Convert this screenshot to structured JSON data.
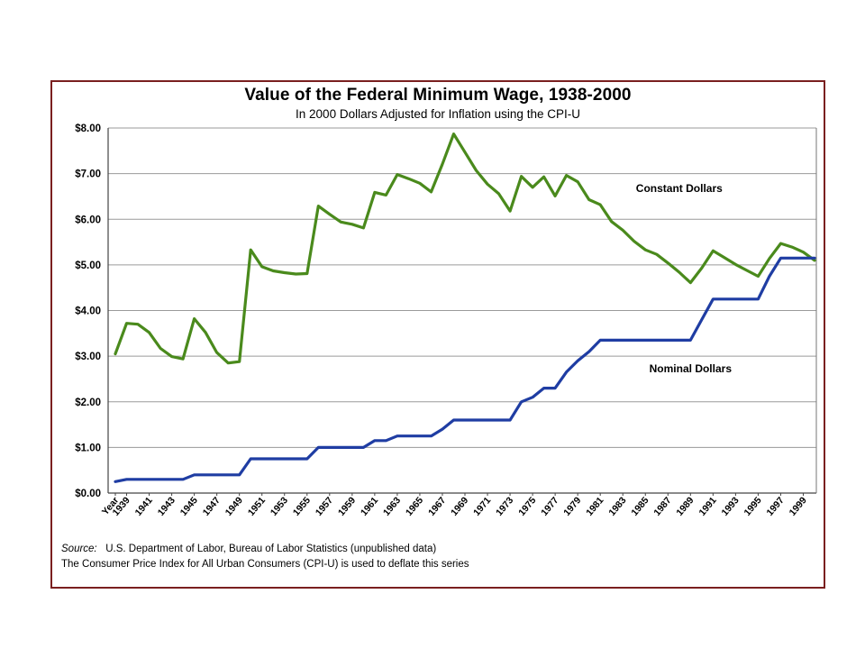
{
  "chart_data": {
    "type": "line",
    "title": "Value of the Federal Minimum Wage, 1938-2000",
    "subtitle": "In 2000 Dollars Adjusted for Inflation using the CPI-U",
    "xlabel": "Year",
    "ylabel": "",
    "ylim": [
      0,
      8
    ],
    "yticks": [
      "$0.00",
      "$1.00",
      "$2.00",
      "$3.00",
      "$4.00",
      "$5.00",
      "$6.00",
      "$7.00",
      "$8.00"
    ],
    "xticks": [
      "Year",
      "1939",
      "1941",
      "1943",
      "1945",
      "1947",
      "1949",
      "1951",
      "1953",
      "1955",
      "1957",
      "1959",
      "1961",
      "1963",
      "1965",
      "1967",
      "1969",
      "1971",
      "1973",
      "1975",
      "1977",
      "1979",
      "1981",
      "1983",
      "1985",
      "1987",
      "1989",
      "1991",
      "1993",
      "1995",
      "1997",
      "1999"
    ],
    "x": [
      1938,
      1939,
      1940,
      1941,
      1942,
      1943,
      1944,
      1945,
      1946,
      1947,
      1948,
      1949,
      1950,
      1951,
      1952,
      1953,
      1954,
      1955,
      1956,
      1957,
      1958,
      1959,
      1960,
      1961,
      1962,
      1963,
      1964,
      1965,
      1966,
      1967,
      1968,
      1969,
      1970,
      1971,
      1972,
      1973,
      1974,
      1975,
      1976,
      1977,
      1978,
      1979,
      1980,
      1981,
      1982,
      1983,
      1984,
      1985,
      1986,
      1987,
      1988,
      1989,
      1990,
      1991,
      1992,
      1993,
      1994,
      1995,
      1996,
      1997,
      1998,
      1999,
      2000
    ],
    "grid": true,
    "series": [
      {
        "name": "Constant Dollars",
        "color": "#4a8a1c",
        "values": [
          3.05,
          3.72,
          3.7,
          3.52,
          3.17,
          2.99,
          2.94,
          3.82,
          3.52,
          3.08,
          2.85,
          2.88,
          5.33,
          4.96,
          4.87,
          4.83,
          4.8,
          4.81,
          6.29,
          6.11,
          5.94,
          5.89,
          5.81,
          6.59,
          6.53,
          6.98,
          6.89,
          6.79,
          6.6,
          7.21,
          7.87,
          7.47,
          7.07,
          6.77,
          6.56,
          6.18,
          6.94,
          6.7,
          6.93,
          6.51,
          6.96,
          6.82,
          6.43,
          6.32,
          5.95,
          5.76,
          5.52,
          5.33,
          5.23,
          5.04,
          4.84,
          4.61,
          4.93,
          5.31,
          5.16,
          5.01,
          4.88,
          4.75,
          5.14,
          5.47,
          5.39,
          5.28,
          5.1
        ]
      },
      {
        "name": "Nominal Dollars",
        "color": "#1f3da3",
        "values": [
          0.25,
          0.3,
          0.3,
          0.3,
          0.3,
          0.3,
          0.3,
          0.4,
          0.4,
          0.4,
          0.4,
          0.4,
          0.75,
          0.75,
          0.75,
          0.75,
          0.75,
          0.75,
          1.0,
          1.0,
          1.0,
          1.0,
          1.0,
          1.15,
          1.15,
          1.25,
          1.25,
          1.25,
          1.25,
          1.4,
          1.6,
          1.6,
          1.6,
          1.6,
          1.6,
          1.6,
          2.0,
          2.1,
          2.3,
          2.3,
          2.65,
          2.9,
          3.1,
          3.35,
          3.35,
          3.35,
          3.35,
          3.35,
          3.35,
          3.35,
          3.35,
          3.35,
          3.8,
          4.25,
          4.25,
          4.25,
          4.25,
          4.25,
          4.75,
          5.15,
          5.15,
          5.15,
          5.15
        ]
      }
    ],
    "annotations": [
      {
        "text": "Constant Dollars",
        "x": 1988,
        "y": 6.6
      },
      {
        "text": "Nominal Dollars",
        "x": 1989,
        "y": 2.65
      }
    ]
  },
  "notes": {
    "source_label": "Source:",
    "source_text": "U.S. Department of Labor, Bureau of Labor Statistics (unpublished data)",
    "cpi_note": "The Consumer Price Index for All Urban Consumers (CPI-U) is used to deflate this series"
  }
}
